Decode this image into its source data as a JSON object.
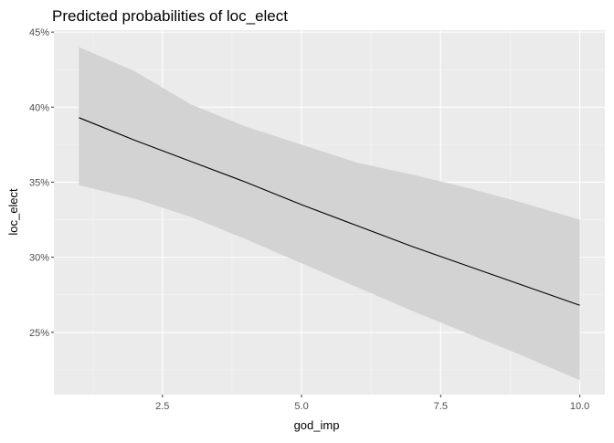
{
  "chart_data": {
    "type": "line",
    "title": "Predicted probabilities of loc_elect",
    "xlabel": "god_imp",
    "ylabel": "loc_elect",
    "xlim": [
      0.55,
      10.45
    ],
    "ylim": [
      0.2085,
      0.4513
    ],
    "x_ticks": [
      2.5,
      5.0,
      7.5,
      10.0
    ],
    "x_tick_labels": [
      "2.5",
      "5.0",
      "7.5",
      "10.0"
    ],
    "y_ticks": [
      0.25,
      0.3,
      0.35,
      0.4,
      0.45
    ],
    "y_tick_labels": [
      "25%",
      "30%",
      "35%",
      "40%",
      "45%"
    ],
    "grid": true,
    "x": [
      1,
      2,
      3,
      4,
      5,
      6,
      7,
      8,
      9,
      10
    ],
    "series": [
      {
        "values": [
          0.393,
          0.378,
          0.364,
          0.35,
          0.335,
          0.321,
          0.307,
          0.294,
          0.281,
          0.268
        ]
      }
    ],
    "ci_upper": [
      0.44,
      0.424,
      0.402,
      0.387,
      0.375,
      0.363,
      0.355,
      0.346,
      0.336,
      0.325
    ],
    "ci_lower": [
      0.348,
      0.339,
      0.327,
      0.312,
      0.296,
      0.28,
      0.264,
      0.249,
      0.234,
      0.218
    ],
    "colors": {
      "panel_background": "#ebebeb",
      "grid_major": "#ffffff",
      "grid_minor": "#f5f5f5",
      "ribbon": "#d3d3d3",
      "line": "#000000"
    }
  }
}
